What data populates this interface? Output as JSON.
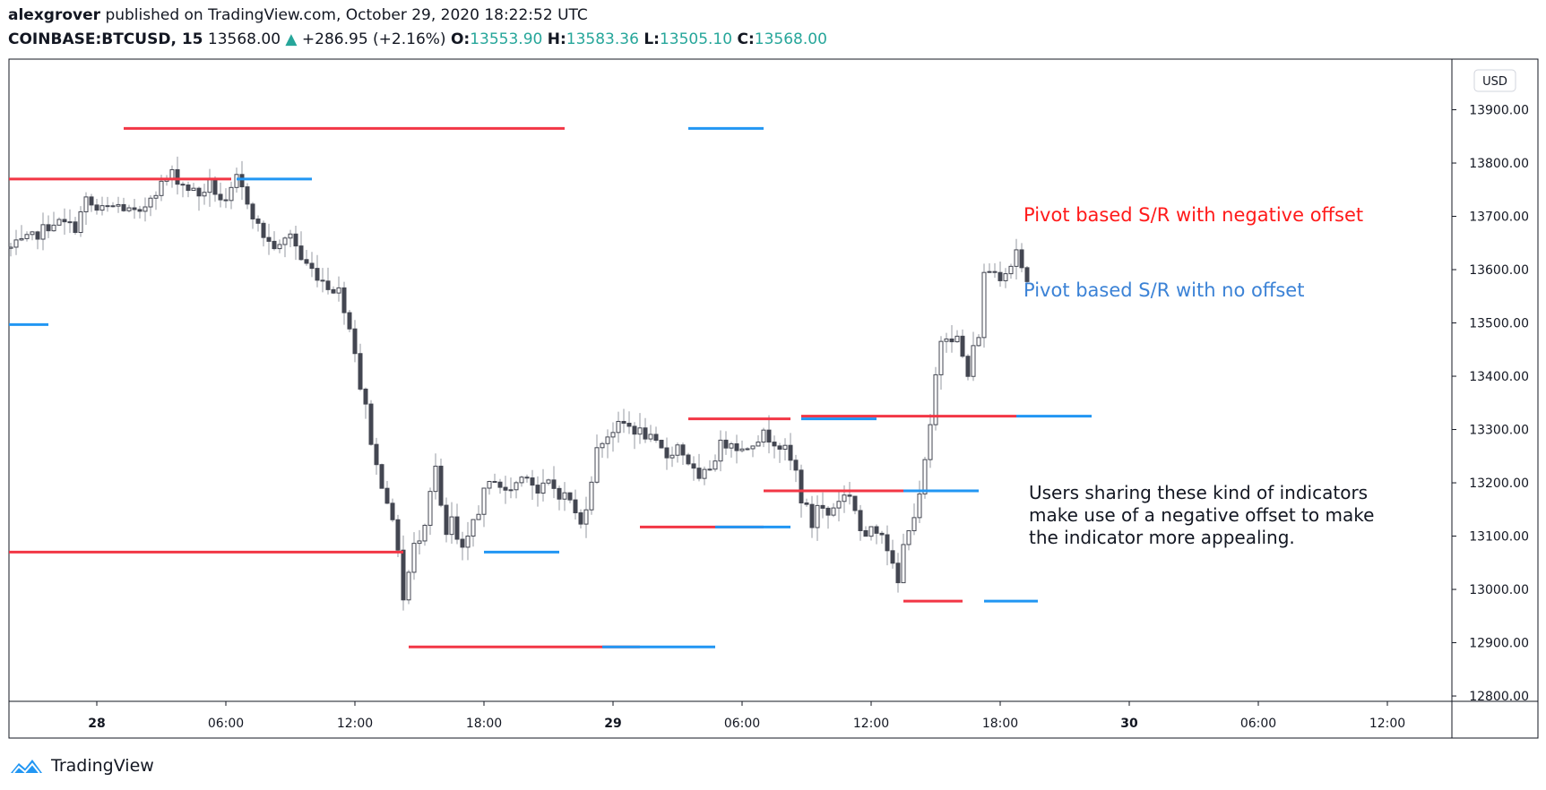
{
  "header": {
    "author": "alexgrover",
    "published_text": "published on TradingView.com, October 29, 2020 18:22:52 UTC",
    "symbol": "COINBASE:BTCUSD, 15",
    "last": "13568.00",
    "change": "+286.95 (+2.16%)",
    "o_label": "O:",
    "o_value": "13553.90",
    "h_label": "H:",
    "h_value": "13583.36",
    "l_label": "L:",
    "l_value": "13505.10",
    "c_label": "C:",
    "c_value": "13568.00"
  },
  "footer": {
    "brand": "TradingView"
  },
  "colors": {
    "up": "#26a69a",
    "negative_offset": "#f23645",
    "no_offset": "#2196f3",
    "annotation_red": "#ff1a1a",
    "annotation_blue": "#3b82d6",
    "axis": "#131722",
    "candle": "#434651"
  },
  "chart_data": {
    "type": "candlestick",
    "currency": "USD",
    "y_ticks": [
      "13900.00",
      "13800.00",
      "13700.00",
      "13600.00",
      "13500.00",
      "13400.00",
      "13300.00",
      "13200.00",
      "13100.00",
      "13000.00",
      "12900.00",
      "12800.00"
    ],
    "y_tick_values": [
      13900,
      13800,
      13700,
      13600,
      13500,
      13400,
      13300,
      13200,
      13100,
      13000,
      12900,
      12800
    ],
    "ylim": [
      12790,
      13995
    ],
    "x_ticks": [
      {
        "label": "28",
        "day": true,
        "bar": 0
      },
      {
        "label": "06:00",
        "day": false,
        "bar": 24
      },
      {
        "label": "12:00",
        "day": false,
        "bar": 48
      },
      {
        "label": "18:00",
        "day": false,
        "bar": 72
      },
      {
        "label": "29",
        "day": true,
        "bar": 96
      },
      {
        "label": "06:00",
        "day": false,
        "bar": 120
      },
      {
        "label": "12:00",
        "day": false,
        "bar": 144
      },
      {
        "label": "18:00",
        "day": false,
        "bar": 168
      },
      {
        "label": "30",
        "day": true,
        "bar": 192
      },
      {
        "label": "06:00",
        "day": false,
        "bar": 216
      },
      {
        "label": "12:00",
        "day": false,
        "bar": 240
      }
    ],
    "close_path": [
      [
        -16,
        13640
      ],
      [
        -12,
        13660
      ],
      [
        -8,
        13690
      ],
      [
        -4,
        13680
      ],
      [
        -2,
        13730
      ],
      [
        0,
        13710
      ],
      [
        4,
        13720
      ],
      [
        8,
        13700
      ],
      [
        10,
        13740
      ],
      [
        14,
        13780
      ],
      [
        16,
        13760
      ],
      [
        19,
        13740
      ],
      [
        21,
        13760
      ],
      [
        24,
        13720
      ],
      [
        26,
        13770
      ],
      [
        28,
        13730
      ],
      [
        30,
        13680
      ],
      [
        32,
        13650
      ],
      [
        34,
        13640
      ],
      [
        36,
        13670
      ],
      [
        38,
        13620
      ],
      [
        40,
        13600
      ],
      [
        43,
        13570
      ],
      [
        45,
        13560
      ],
      [
        46,
        13530
      ],
      [
        47,
        13490
      ],
      [
        48,
        13450
      ],
      [
        49,
        13380
      ],
      [
        50,
        13340
      ],
      [
        51,
        13280
      ],
      [
        52,
        13230
      ],
      [
        53,
        13200
      ],
      [
        54,
        13170
      ],
      [
        55,
        13120
      ],
      [
        56,
        13080
      ],
      [
        57,
        12980
      ],
      [
        58,
        13030
      ],
      [
        59,
        13080
      ],
      [
        60,
        13100
      ],
      [
        61,
        13130
      ],
      [
        62,
        13190
      ],
      [
        63,
        13230
      ],
      [
        64,
        13150
      ],
      [
        65,
        13100
      ],
      [
        66,
        13130
      ],
      [
        67,
        13090
      ],
      [
        68,
        13070
      ],
      [
        69,
        13090
      ],
      [
        70,
        13130
      ],
      [
        71,
        13150
      ],
      [
        72,
        13180
      ],
      [
        74,
        13210
      ],
      [
        76,
        13180
      ],
      [
        78,
        13200
      ],
      [
        80,
        13220
      ],
      [
        82,
        13180
      ],
      [
        84,
        13200
      ],
      [
        86,
        13180
      ],
      [
        88,
        13170
      ],
      [
        89,
        13140
      ],
      [
        90,
        13120
      ],
      [
        91,
        13160
      ],
      [
        92,
        13210
      ],
      [
        93,
        13260
      ],
      [
        94,
        13280
      ],
      [
        96,
        13300
      ],
      [
        98,
        13310
      ],
      [
        100,
        13300
      ],
      [
        102,
        13290
      ],
      [
        104,
        13270
      ],
      [
        106,
        13250
      ],
      [
        108,
        13270
      ],
      [
        110,
        13240
      ],
      [
        112,
        13200
      ],
      [
        114,
        13230
      ],
      [
        116,
        13270
      ],
      [
        118,
        13280
      ],
      [
        120,
        13260
      ],
      [
        122,
        13280
      ],
      [
        124,
        13290
      ],
      [
        126,
        13280
      ],
      [
        128,
        13260
      ],
      [
        130,
        13220
      ],
      [
        131,
        13170
      ],
      [
        132,
        13150
      ],
      [
        133,
        13120
      ],
      [
        134,
        13160
      ],
      [
        136,
        13140
      ],
      [
        138,
        13170
      ],
      [
        140,
        13180
      ],
      [
        141,
        13150
      ],
      [
        142,
        13110
      ],
      [
        143,
        13090
      ],
      [
        144,
        13120
      ],
      [
        146,
        13110
      ],
      [
        147,
        13080
      ],
      [
        148,
        13040
      ],
      [
        149,
        13010
      ],
      [
        150,
        13080
      ],
      [
        151,
        13120
      ],
      [
        152,
        13140
      ],
      [
        153,
        13170
      ],
      [
        154,
        13240
      ],
      [
        155,
        13300
      ],
      [
        156,
        13400
      ],
      [
        157,
        13470
      ],
      [
        158,
        13480
      ],
      [
        160,
        13470
      ],
      [
        162,
        13400
      ],
      [
        163,
        13450
      ],
      [
        164,
        13480
      ],
      [
        165,
        13590
      ],
      [
        166,
        13600
      ],
      [
        168,
        13590
      ],
      [
        170,
        13610
      ],
      [
        171,
        13640
      ],
      [
        172,
        13600
      ],
      [
        173,
        13568
      ]
    ],
    "series": [
      {
        "name": "Pivot based S/R with negative offset",
        "color": "#f23645",
        "segments": [
          {
            "x0": -18,
            "x1": 25,
            "y": 13770
          },
          {
            "x0": 5,
            "x1": 87,
            "y": 13865
          },
          {
            "x0": -18,
            "x1": 57,
            "y": 13070
          },
          {
            "x0": 58,
            "x1": 101,
            "y": 12892
          },
          {
            "x0": 101,
            "x1": 124,
            "y": 13117
          },
          {
            "x0": 110,
            "x1": 129,
            "y": 13320
          },
          {
            "x0": 124,
            "x1": 150,
            "y": 13185
          },
          {
            "x0": 131,
            "x1": 171,
            "y": 13325
          },
          {
            "x0": 150,
            "x1": 161,
            "y": 12978
          }
        ]
      },
      {
        "name": "Pivot based S/R with no offset",
        "color": "#2196f3",
        "segments": [
          {
            "x0": -18,
            "x1": -9,
            "y": 13497
          },
          {
            "x0": 26,
            "x1": 40,
            "y": 13770
          },
          {
            "x0": 110,
            "x1": 124,
            "y": 13865
          },
          {
            "x0": 72,
            "x1": 86,
            "y": 13070
          },
          {
            "x0": 94,
            "x1": 115,
            "y": 12892
          },
          {
            "x0": 115,
            "x1": 129,
            "y": 13117
          },
          {
            "x0": 131,
            "x1": 145,
            "y": 13320
          },
          {
            "x0": 150,
            "x1": 164,
            "y": 13185
          },
          {
            "x0": 171,
            "x1": 185,
            "y": 13325
          },
          {
            "x0": 165,
            "x1": 175,
            "y": 12978
          }
        ]
      }
    ]
  },
  "annotations": {
    "neg_label": "Pivot based S/R with negative offset",
    "none_label": "Pivot based S/R with no offset",
    "note_lines": [
      "Users sharing these kind of indicators",
      "make use of a negative offset to make",
      "the indicator more appealing."
    ]
  }
}
